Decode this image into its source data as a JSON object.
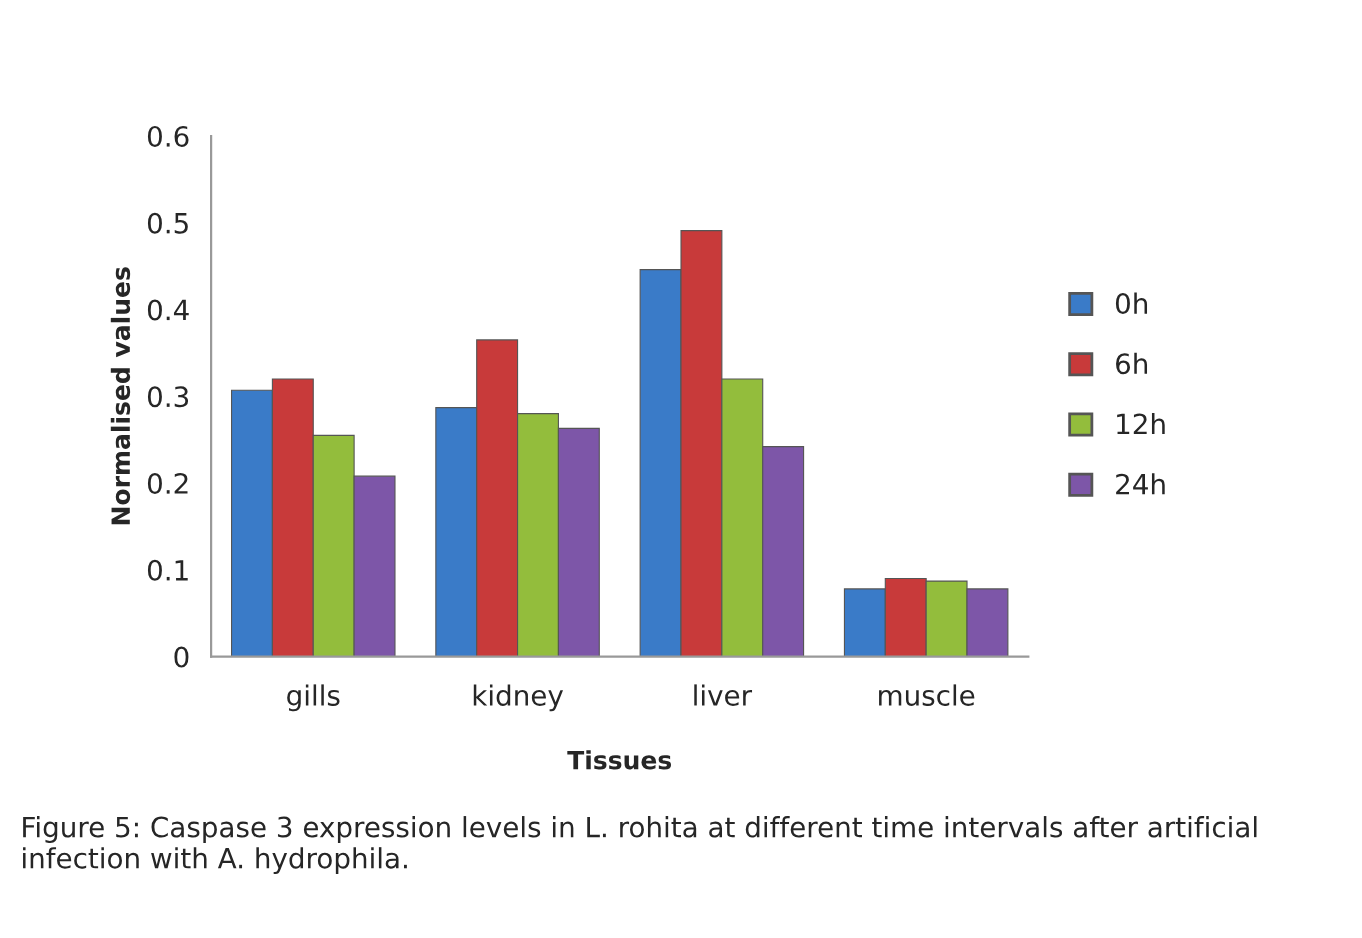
{
  "chart_data": {
    "type": "bar",
    "xlabel": "Tissues",
    "ylabel": "Normalised values",
    "categories": [
      "gills",
      "kidney",
      "liver",
      "muscle"
    ],
    "series": [
      {
        "name": "0h",
        "color": "#3a7bc8",
        "values": [
          0.307,
          0.287,
          0.446,
          0.078
        ]
      },
      {
        "name": "6h",
        "color": "#c83a3a",
        "values": [
          0.32,
          0.365,
          0.491,
          0.09
        ]
      },
      {
        "name": "12h",
        "color": "#93bd3c",
        "values": [
          0.255,
          0.28,
          0.32,
          0.087
        ]
      },
      {
        "name": "24h",
        "color": "#7d56a8",
        "values": [
          0.208,
          0.263,
          0.242,
          0.078
        ]
      }
    ],
    "ylim": [
      0,
      0.6
    ],
    "yticks": [
      {
        "value": 0,
        "label": "0"
      },
      0.1,
      0.2,
      0.3,
      0.4,
      0.5,
      0.6
    ],
    "grid": false,
    "legend": "right",
    "annotations": [
      "Figure 5: Caspase 3 expression levels in L. rohita at different time intervals after artificial infection with A. hydrophila."
    ]
  }
}
